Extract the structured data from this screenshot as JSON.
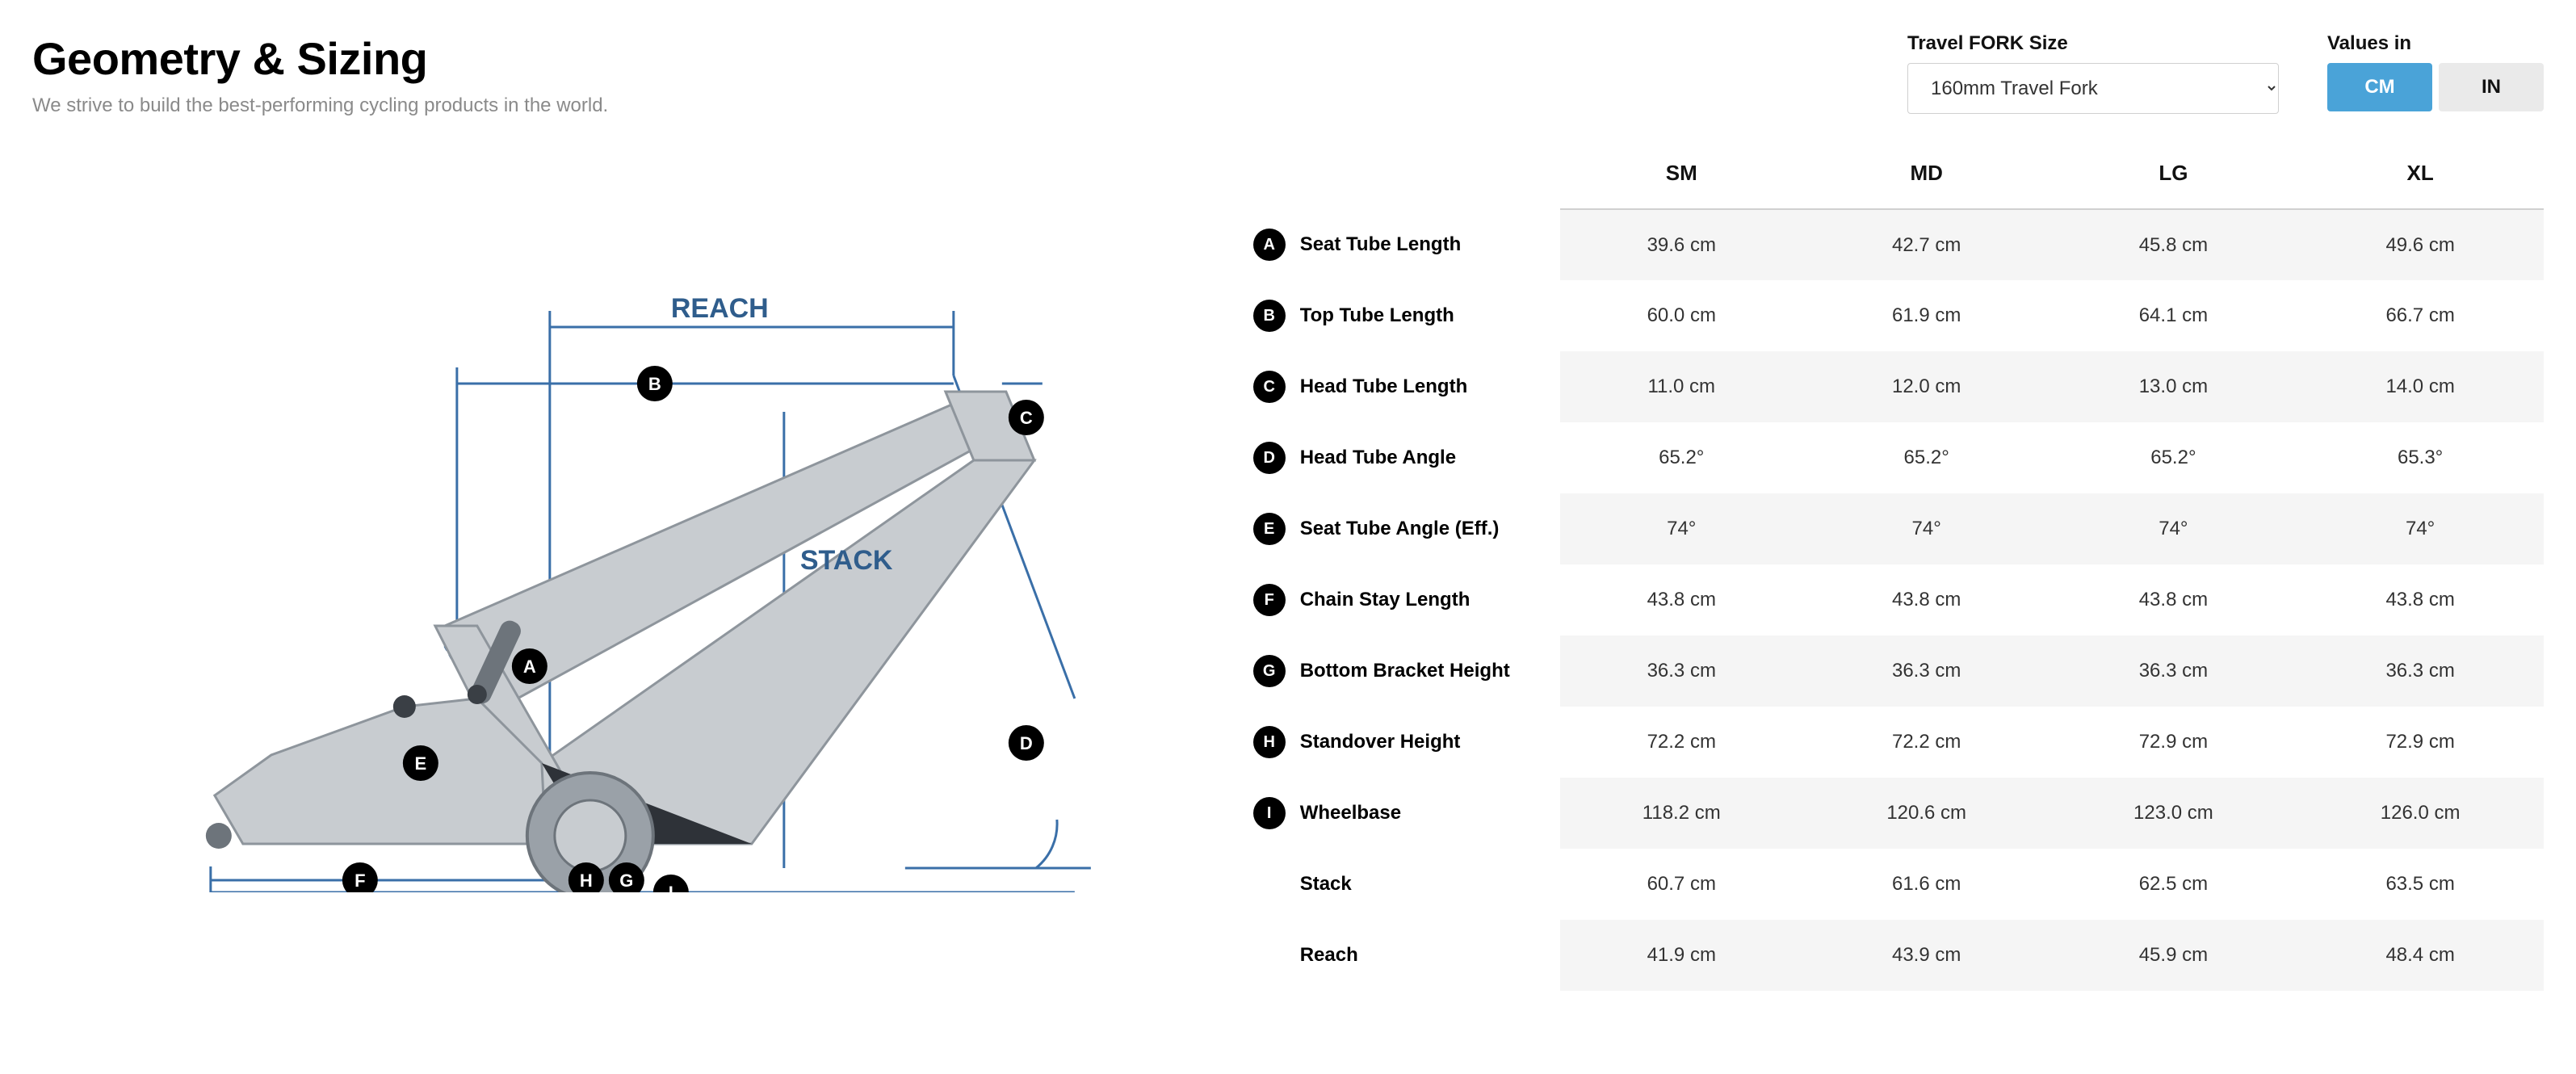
{
  "header": {
    "title": "Geometry & Sizing",
    "subtitle": "We strive to build the best-performing cycling products in the world."
  },
  "controls": {
    "fork_label": "Travel FORK Size",
    "fork_selected": "160mm Travel Fork",
    "values_label": "Values in",
    "unit_cm": "CM",
    "unit_in": "IN",
    "active_unit": "CM"
  },
  "diagram": {
    "reach_label": "REACH",
    "stack_label": "STACK",
    "markers": [
      "A",
      "B",
      "C",
      "D",
      "E",
      "F",
      "G",
      "H",
      "I"
    ],
    "guide_color": "#3a6fa8",
    "frame_fill": "#c8ccd0",
    "frame_shadow": "#8e959c",
    "frame_dark": "#2e3238"
  },
  "geometry_table": {
    "type": "table",
    "size_columns": [
      "SM",
      "MD",
      "LG",
      "XL"
    ],
    "rows": [
      {
        "key": "A",
        "label": "Seat Tube Length",
        "values": [
          "39.6 cm",
          "42.7 cm",
          "45.8 cm",
          "49.6 cm"
        ]
      },
      {
        "key": "B",
        "label": "Top Tube Length",
        "values": [
          "60.0 cm",
          "61.9 cm",
          "64.1 cm",
          "66.7 cm"
        ]
      },
      {
        "key": "C",
        "label": "Head Tube Length",
        "values": [
          "11.0 cm",
          "12.0 cm",
          "13.0 cm",
          "14.0 cm"
        ]
      },
      {
        "key": "D",
        "label": "Head Tube Angle",
        "values": [
          "65.2°",
          "65.2°",
          "65.2°",
          "65.3°"
        ]
      },
      {
        "key": "E",
        "label": "Seat Tube Angle (Eff.)",
        "values": [
          "74°",
          "74°",
          "74°",
          "74°"
        ]
      },
      {
        "key": "F",
        "label": "Chain Stay Length",
        "values": [
          "43.8 cm",
          "43.8 cm",
          "43.8 cm",
          "43.8 cm"
        ]
      },
      {
        "key": "G",
        "label": "Bottom Bracket Height",
        "values": [
          "36.3 cm",
          "36.3 cm",
          "36.3 cm",
          "36.3 cm"
        ]
      },
      {
        "key": "H",
        "label": "Standover Height",
        "values": [
          "72.2 cm",
          "72.2 cm",
          "72.9 cm",
          "72.9 cm"
        ]
      },
      {
        "key": "I",
        "label": "Wheelbase",
        "values": [
          "118.2 cm",
          "120.6 cm",
          "123.0 cm",
          "126.0 cm"
        ]
      },
      {
        "key": "",
        "label": "Stack",
        "values": [
          "60.7 cm",
          "61.6 cm",
          "62.5 cm",
          "63.5 cm"
        ]
      },
      {
        "key": "",
        "label": "Reach",
        "values": [
          "41.9 cm",
          "43.9 cm",
          "45.9 cm",
          "48.4 cm"
        ]
      }
    ],
    "header_fontsize": 26,
    "cell_fontsize": 24,
    "stripe_color": "#f5f5f5",
    "border_color": "#d0d0d0"
  },
  "colors": {
    "accent": "#4aa3d8",
    "text": "#111111",
    "muted": "#8a8a8a",
    "btn_inactive_bg": "#eaeaea"
  }
}
